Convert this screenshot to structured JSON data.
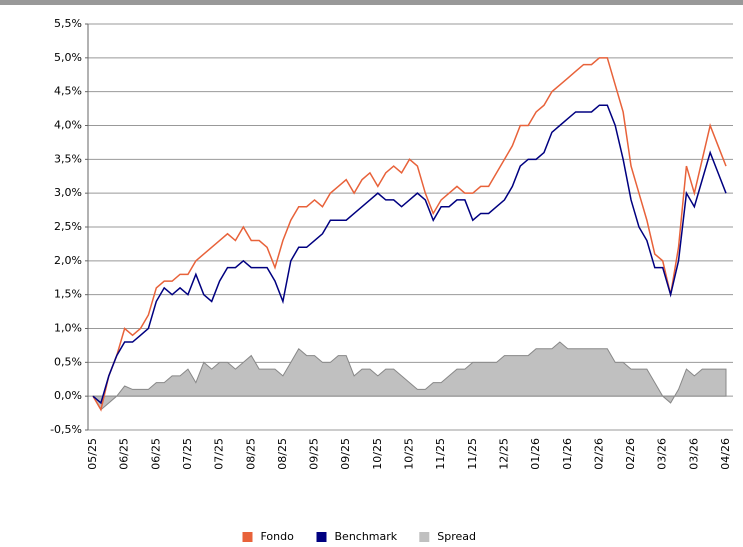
{
  "chart_data": {
    "type": "line",
    "categories": [
      "05/25",
      null,
      null,
      null,
      "06/25",
      null,
      null,
      null,
      "06/25",
      null,
      null,
      null,
      "07/25",
      null,
      null,
      null,
      "07/25",
      null,
      null,
      null,
      "08/25",
      null,
      null,
      null,
      "08/25",
      null,
      null,
      null,
      "09/25",
      null,
      null,
      null,
      "09/25",
      null,
      null,
      null,
      "10/25",
      null,
      null,
      null,
      "10/25",
      null,
      null,
      null,
      "11/25",
      null,
      null,
      null,
      "11/25",
      null,
      null,
      null,
      "12/25",
      null,
      null,
      null,
      "01/26",
      null,
      null,
      null,
      "01/26",
      null,
      null,
      null,
      "02/26",
      null,
      null,
      null,
      "02/26",
      null,
      null,
      null,
      "03/26",
      null,
      null,
      null,
      "03/26",
      null,
      null,
      null,
      "04/26"
    ],
    "series": [
      {
        "name": "Fondo",
        "color": "#e8623a",
        "values": [
          0.0,
          -0.2,
          0.3,
          0.6,
          1.0,
          0.9,
          1.0,
          1.2,
          1.6,
          1.7,
          1.7,
          1.8,
          1.8,
          2.0,
          2.1,
          2.2,
          2.3,
          2.4,
          2.3,
          2.5,
          2.3,
          2.3,
          2.2,
          1.9,
          2.3,
          2.6,
          2.8,
          2.8,
          2.9,
          2.8,
          3.0,
          3.1,
          3.2,
          3.0,
          3.2,
          3.3,
          3.1,
          3.3,
          3.4,
          3.3,
          3.5,
          3.4,
          3.0,
          2.7,
          2.9,
          3.0,
          3.1,
          3.0,
          3.0,
          3.1,
          3.1,
          3.3,
          3.5,
          3.7,
          4.0,
          4.0,
          4.2,
          4.3,
          4.5,
          4.6,
          4.7,
          4.8,
          4.9,
          4.9,
          5.0,
          5.0,
          4.6,
          4.2,
          3.4,
          3.0,
          2.6,
          2.1,
          2.0,
          1.5,
          2.2,
          3.4,
          3.0,
          3.5,
          4.0,
          3.7,
          3.4
        ]
      },
      {
        "name": "Benchmark",
        "color": "#000080",
        "values": [
          0.0,
          -0.1,
          0.3,
          0.6,
          0.8,
          0.8,
          0.9,
          1.0,
          1.4,
          1.6,
          1.5,
          1.6,
          1.5,
          1.8,
          1.5,
          1.4,
          1.7,
          1.9,
          1.9,
          2.0,
          1.9,
          1.9,
          1.9,
          1.7,
          1.4,
          2.0,
          2.2,
          2.2,
          2.3,
          2.4,
          2.6,
          2.6,
          2.6,
          2.7,
          2.8,
          2.9,
          3.0,
          2.9,
          2.9,
          2.8,
          2.9,
          3.0,
          2.9,
          2.6,
          2.8,
          2.8,
          2.9,
          2.9,
          2.6,
          2.7,
          2.7,
          2.8,
          2.9,
          3.1,
          3.4,
          3.5,
          3.5,
          3.6,
          3.9,
          4.0,
          4.1,
          4.2,
          4.2,
          4.2,
          4.3,
          4.3,
          4.0,
          3.5,
          2.9,
          2.5,
          2.3,
          1.9,
          1.9,
          1.5,
          2.0,
          3.0,
          2.8,
          3.2,
          3.6,
          3.3,
          3.0
        ]
      },
      {
        "name": "Spread",
        "color": "#c0c0c0",
        "area": true,
        "values": [
          0.0,
          -0.2,
          -0.1,
          0.0,
          0.15,
          0.1,
          0.1,
          0.1,
          0.2,
          0.2,
          0.3,
          0.3,
          0.4,
          0.2,
          0.5,
          0.4,
          0.5,
          0.5,
          0.4,
          0.5,
          0.6,
          0.4,
          0.4,
          0.4,
          0.3,
          0.5,
          0.7,
          0.6,
          0.6,
          0.5,
          0.5,
          0.6,
          0.6,
          0.3,
          0.4,
          0.4,
          0.3,
          0.4,
          0.4,
          0.3,
          0.2,
          0.1,
          0.1,
          0.2,
          0.2,
          0.3,
          0.4,
          0.4,
          0.5,
          0.5,
          0.5,
          0.5,
          0.6,
          0.6,
          0.6,
          0.6,
          0.7,
          0.7,
          0.7,
          0.8,
          0.7,
          0.7,
          0.7,
          0.7,
          0.7,
          0.7,
          0.5,
          0.5,
          0.4,
          0.4,
          0.4,
          0.2,
          0.0,
          -0.1,
          0.1,
          0.4,
          0.3,
          0.4,
          0.4,
          0.4,
          0.4
        ]
      }
    ],
    "ylim": [
      -0.5,
      5.5
    ],
    "yticks": [
      {
        "value": -0.5,
        "label": "-0,5%"
      },
      {
        "value": 0,
        "label": "0,0%"
      },
      {
        "value": 0.5,
        "label": "0,5%"
      },
      {
        "value": 1,
        "label": "1,0%"
      },
      {
        "value": 1.5,
        "label": "1,5%"
      },
      {
        "value": 2,
        "label": "2,0%"
      },
      {
        "value": 2.5,
        "label": "2,5%"
      },
      {
        "value": 3,
        "label": "3,0%"
      },
      {
        "value": 3.5,
        "label": "3,5%"
      },
      {
        "value": 4,
        "label": "4,0%"
      },
      {
        "value": 4.5,
        "label": "4,5%"
      },
      {
        "value": 5,
        "label": "5,0%"
      },
      {
        "value": 5.5,
        "label": "5,5%"
      }
    ],
    "grid": true,
    "legend": "bottom"
  }
}
